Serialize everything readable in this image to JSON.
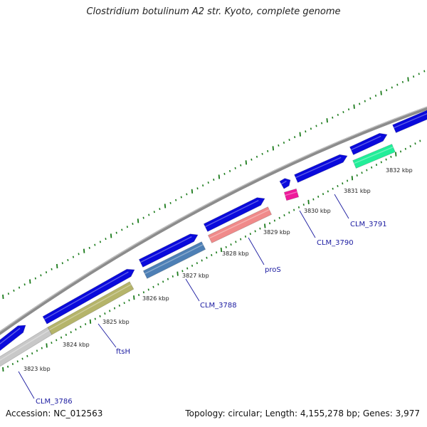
{
  "title": "Clostridium botulinum A2 str. Kyoto, complete genome",
  "footer": {
    "accession": "Accession: NC_012563",
    "summary": "Topology: circular; Length: 4,155,278 bp; Genes: 3,977"
  },
  "colors": {
    "backbone": "#8c8c8c",
    "gene_forward": "#0a0adc",
    "tick": "#1a7a1a",
    "label": "#1a1aa0"
  },
  "ticks": [
    {
      "label": "3823 kbp",
      "kbp": 3823
    },
    {
      "label": "3824 kbp",
      "kbp": 3824
    },
    {
      "label": "3825 kbp",
      "kbp": 3825
    },
    {
      "label": "3826 kbp",
      "kbp": 3826
    },
    {
      "label": "3827 kbp",
      "kbp": 3827
    },
    {
      "label": "3828 kbp",
      "kbp": 3828
    },
    {
      "label": "3829 kbp",
      "kbp": 3829
    },
    {
      "label": "3830 kbp",
      "kbp": 3830
    },
    {
      "label": "3831 kbp",
      "kbp": 3831
    },
    {
      "label": "3832 kbp",
      "kbp": 3832
    }
  ],
  "genes_forward": [
    {
      "id": "fwd-1",
      "color": "#0a0adc"
    },
    {
      "id": "fwd-2",
      "color": "#0a0adc"
    },
    {
      "id": "fwd-3",
      "color": "#0a0adc"
    },
    {
      "id": "fwd-4",
      "color": "#0a0adc"
    },
    {
      "id": "fwd-5",
      "color": "#0a0adc"
    },
    {
      "id": "fwd-6",
      "color": "#0a0adc"
    },
    {
      "id": "fwd-7",
      "color": "#0a0adc"
    },
    {
      "id": "fwd-8",
      "color": "#0a0adc"
    }
  ],
  "genes_reverse": [
    {
      "name": "CLM_3786",
      "color": "#c8c8c8"
    },
    {
      "name": "ftsH",
      "color": "#b5b46a"
    },
    {
      "name": "CLM_3788",
      "color": "#4d7fb5"
    },
    {
      "name": "proS",
      "color": "#f08a8a"
    },
    {
      "name": "CLM_3790",
      "color": "#ee1a9a"
    },
    {
      "name": "CLM_3791",
      "color": "#22ee99"
    }
  ]
}
